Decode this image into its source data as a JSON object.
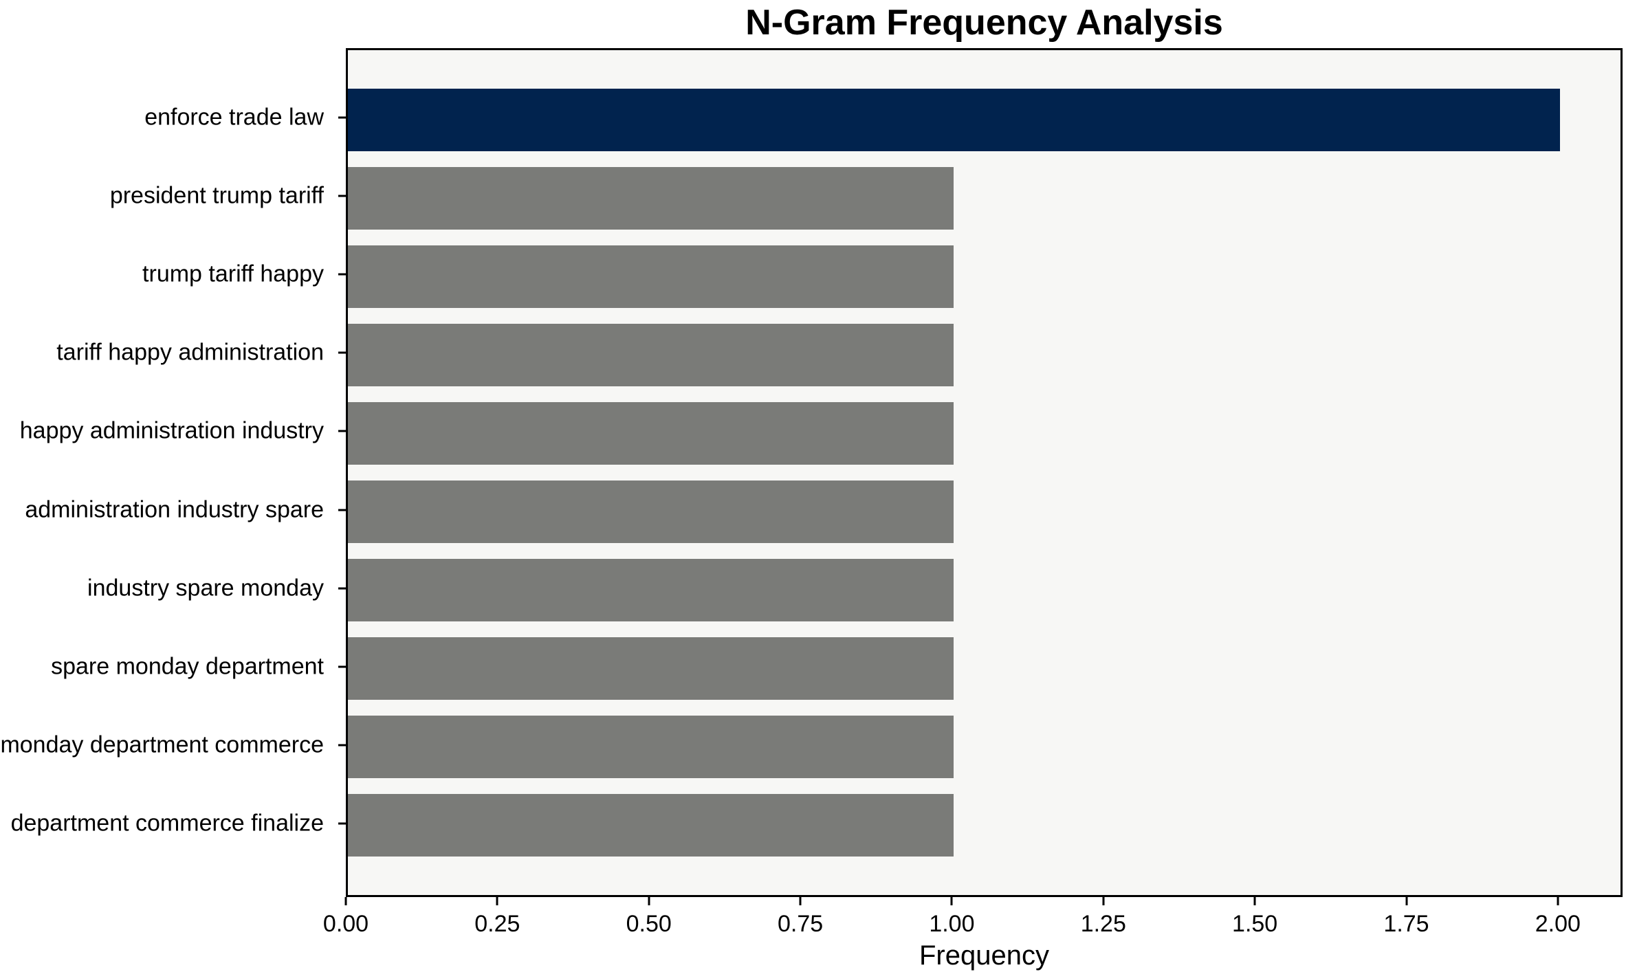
{
  "chart_data": {
    "type": "bar",
    "orientation": "horizontal",
    "title": "N-Gram Frequency Analysis",
    "xlabel": "Frequency",
    "ylabel": "",
    "categories": [
      "enforce trade law",
      "president trump tariff",
      "trump tariff happy",
      "tariff happy administration",
      "happy administration industry",
      "administration industry spare",
      "industry spare monday",
      "spare monday department",
      "monday department commerce",
      "department commerce finalize"
    ],
    "values": [
      2,
      1,
      1,
      1,
      1,
      1,
      1,
      1,
      1,
      1
    ],
    "bar_colors": [
      "#01234e",
      "#7a7b78",
      "#7a7b78",
      "#7a7b78",
      "#7a7b78",
      "#7a7b78",
      "#7a7b78",
      "#7a7b78",
      "#7a7b78",
      "#7a7b78"
    ],
    "highlight_color": "#01234e",
    "default_color": "#7a7b78",
    "plot_background": "#f7f7f5",
    "figure_background": "#ffffff",
    "xlim": [
      0,
      2.1
    ],
    "xticks": {
      "values": [
        0.0,
        0.25,
        0.5,
        0.75,
        1.0,
        1.25,
        1.5,
        1.75,
        2.0
      ],
      "labels": [
        "0.00",
        "0.25",
        "0.50",
        "0.75",
        "1.00",
        "1.25",
        "1.50",
        "1.75",
        "2.00"
      ]
    },
    "grid": false,
    "legend": "none"
  }
}
